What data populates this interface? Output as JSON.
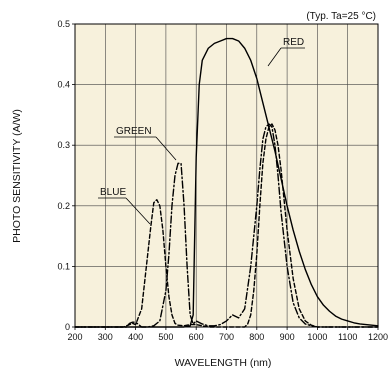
{
  "chart_data": {
    "type": "line",
    "title": "",
    "annotation": "(Typ. Ta=25 °C)",
    "xlabel": "WAVELENGTH (nm)",
    "ylabel": "PHOTO SENSITIVITY (A/W)",
    "xlim": [
      200,
      1200
    ],
    "ylim": [
      0,
      0.5
    ],
    "xticks": [
      200,
      300,
      400,
      500,
      600,
      700,
      800,
      900,
      1000,
      1100,
      1200
    ],
    "yticks": [
      0,
      0.1,
      0.2,
      0.3,
      0.4,
      0.5
    ],
    "xtick_labels": [
      "200",
      "300",
      "400",
      "500",
      "600",
      "700",
      "800",
      "900",
      "1000",
      "1100",
      "1200"
    ],
    "ytick_labels": [
      "0",
      "0.1",
      "0.2",
      "0.3",
      "0.4",
      "0.5"
    ],
    "grid": true,
    "background_color": "#f7f1dc",
    "series": [
      {
        "name": "RED",
        "line_style": "solid",
        "x": [
          200,
          560,
          580,
          590,
          600,
          610,
          620,
          640,
          660,
          680,
          700,
          720,
          740,
          760,
          780,
          800,
          820,
          840,
          860,
          880,
          900,
          920,
          940,
          960,
          980,
          1000,
          1020,
          1040,
          1060,
          1080,
          1100,
          1120,
          1140,
          1160,
          1180,
          1200
        ],
        "y": [
          0,
          0,
          0.002,
          0.02,
          0.28,
          0.4,
          0.44,
          0.46,
          0.468,
          0.472,
          0.476,
          0.476,
          0.472,
          0.46,
          0.44,
          0.41,
          0.37,
          0.33,
          0.29,
          0.245,
          0.2,
          0.16,
          0.125,
          0.095,
          0.07,
          0.05,
          0.036,
          0.026,
          0.018,
          0.013,
          0.01,
          0.007,
          0.005,
          0.004,
          0.003,
          0.002
        ]
      },
      {
        "name": "GREEN",
        "line_style": "dash-dot",
        "x": [
          200,
          370,
          380,
          390,
          400,
          410,
          420,
          440,
          460,
          480,
          500,
          510,
          520,
          530,
          540,
          550,
          560,
          570,
          580,
          590,
          600,
          620,
          640,
          660,
          680,
          700,
          720,
          740,
          760,
          780,
          800,
          810,
          820,
          830,
          840,
          850,
          860,
          870,
          880,
          900,
          920,
          940,
          960,
          980,
          1000,
          1200
        ],
        "y": [
          0,
          0,
          0.006,
          0.008,
          0.008,
          0.004,
          0,
          0,
          0.002,
          0.01,
          0.06,
          0.12,
          0.2,
          0.25,
          0.27,
          0.27,
          0.2,
          0.1,
          0.02,
          0.005,
          0.01,
          0.005,
          0.002,
          0.002,
          0.004,
          0.01,
          0.02,
          0.015,
          0.03,
          0.1,
          0.2,
          0.26,
          0.31,
          0.33,
          0.335,
          0.33,
          0.3,
          0.25,
          0.19,
          0.1,
          0.04,
          0.015,
          0.005,
          0.002,
          0,
          0
        ]
      },
      {
        "name": "BLUE",
        "line_style": "dashed",
        "x": [
          200,
          360,
          380,
          390,
          400,
          420,
          440,
          450,
          460,
          470,
          480,
          490,
          500,
          510,
          520,
          530,
          540,
          560,
          580,
          600,
          620,
          640,
          700,
          760,
          770,
          780,
          790,
          800,
          810,
          820,
          830,
          840,
          850,
          860,
          870,
          880,
          890,
          900,
          920,
          940,
          960,
          980,
          1000,
          1200
        ],
        "y": [
          0,
          0,
          0.004,
          0.006,
          0.004,
          0.03,
          0.12,
          0.165,
          0.205,
          0.21,
          0.2,
          0.16,
          0.1,
          0.05,
          0.02,
          0.006,
          0.003,
          0.002,
          0.004,
          0.004,
          0.002,
          0,
          0,
          0,
          0.005,
          0.02,
          0.06,
          0.12,
          0.2,
          0.27,
          0.31,
          0.33,
          0.335,
          0.325,
          0.3,
          0.26,
          0.21,
          0.16,
          0.08,
          0.03,
          0.01,
          0.003,
          0,
          0
        ]
      }
    ]
  }
}
